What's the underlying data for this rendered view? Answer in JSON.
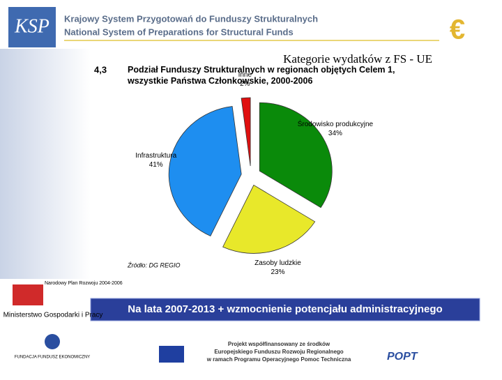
{
  "header": {
    "logo": "KSP",
    "line_pl": "Krajowy System Przygotowań do Funduszy Strukturalnych",
    "line_en": "National System of Preparations for Structural Funds"
  },
  "slide_title": "Kategorie wydatków z FS - UE",
  "chart_data": {
    "type": "pie",
    "number": "4,3",
    "title": "Podział Funduszy Strukturalnych w regionach objętych Celem 1, wszystkie Państwa Członkowskie, 2000-2006",
    "categories": [
      "Środowisko produkcyjne",
      "Zasoby ludzkie",
      "Infrastruktura",
      "Inne"
    ],
    "values": [
      34,
      23,
      41,
      2
    ],
    "value_labels": [
      "34%",
      "23%",
      "41%",
      "2%"
    ],
    "colors": [
      "#0a8a0a",
      "#e8e82a",
      "#1e8ef0",
      "#e01010"
    ],
    "source": "Źródło: DG REGIO"
  },
  "banner": "Na lata 2007-2013 + wzmocnienie potencjału administracyjnego",
  "footer": {
    "npr": "Narodowy Plan Rozwoju 2004-2006",
    "ministry": "Ministerstwo Gospodarki i Pracy",
    "foundation": "FUNDACJA FUNDUSZ EKONOMICZNY",
    "project": [
      "Projekt współfinansowany ze środków",
      "Europejskiego Funduszu Rozwoju Regionalnego",
      "w ramach Programu Operacyjnego Pomoc Techniczna"
    ],
    "popt": "POPT"
  }
}
